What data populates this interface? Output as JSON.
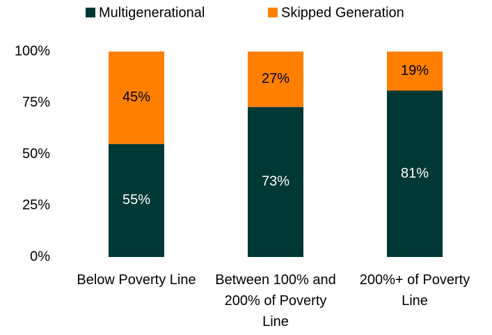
{
  "chart_data": {
    "type": "stacked_bar",
    "categories": [
      "Below Poverty Line",
      "Between 100% and 200% of Poverty Line",
      "200%+ of Poverty Line"
    ],
    "series": [
      {
        "name": "Multigenerational",
        "color": "#003836",
        "values": [
          55,
          73,
          81
        ],
        "value_labels": [
          "55%",
          "73%",
          "81%"
        ]
      },
      {
        "name": "Skipped Generation",
        "color": "#ff7f00",
        "values": [
          45,
          27,
          19
        ],
        "value_labels": [
          "45%",
          "27%",
          "19%"
        ]
      }
    ],
    "ylim": [
      0,
      100
    ],
    "yticks": [
      {
        "value": 0,
        "label": "0%"
      },
      {
        "value": 25,
        "label": "25%"
      },
      {
        "value": 50,
        "label": "50%"
      },
      {
        "value": 75,
        "label": "75%"
      },
      {
        "value": 100,
        "label": "100%"
      }
    ],
    "grid": false,
    "legend": "top"
  }
}
